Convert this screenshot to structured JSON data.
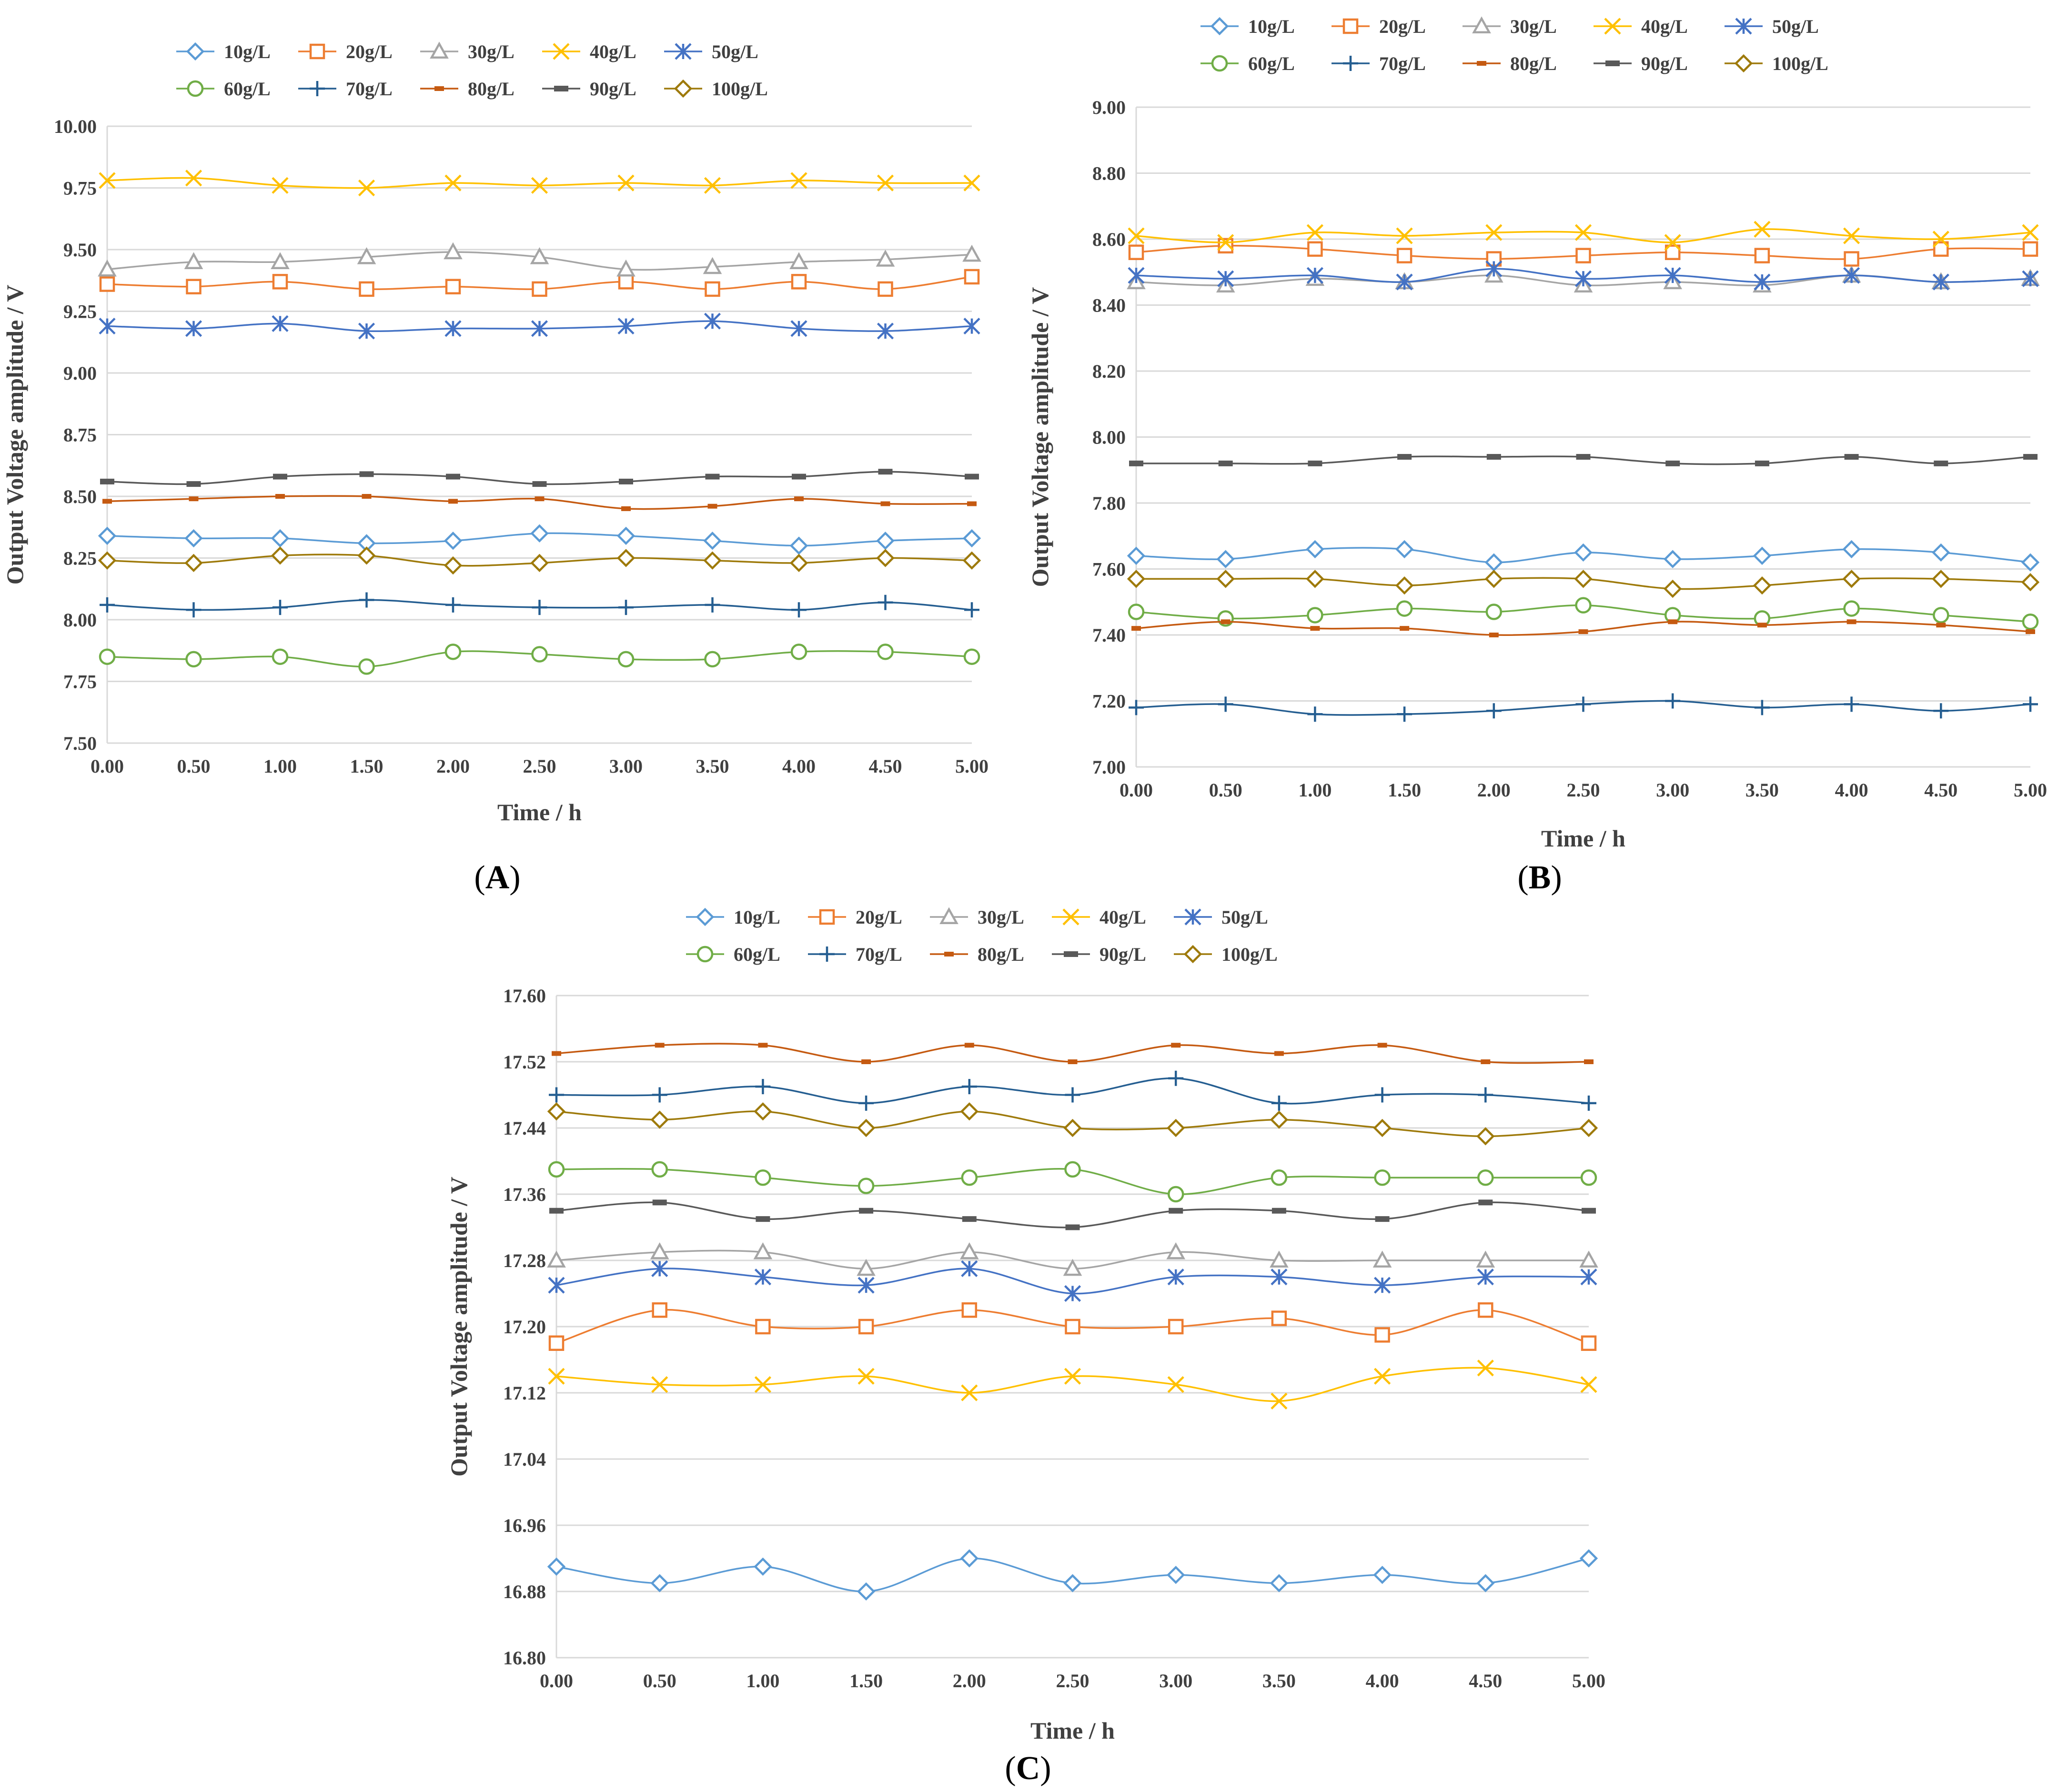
{
  "series_styles": [
    {
      "name": "10g/L",
      "color": "#5B9BD5",
      "marker": "diamond"
    },
    {
      "name": "20g/L",
      "color": "#ED7D31",
      "marker": "square"
    },
    {
      "name": "30g/L",
      "color": "#A5A5A5",
      "marker": "triangle"
    },
    {
      "name": "40g/L",
      "color": "#FFC000",
      "marker": "x"
    },
    {
      "name": "50g/L",
      "color": "#4472C4",
      "marker": "star"
    },
    {
      "name": "60g/L",
      "color": "#70AD47",
      "marker": "circle"
    },
    {
      "name": "70g/L",
      "color": "#255E91",
      "marker": "plus"
    },
    {
      "name": "80g/L",
      "color": "#C55A11",
      "marker": "dash"
    },
    {
      "name": "90g/L",
      "color": "#595959",
      "marker": "dash-wide"
    },
    {
      "name": "100g/L",
      "color": "#9E7A0B",
      "marker": "diamond"
    }
  ],
  "chart_data": [
    {
      "panel": "A",
      "type": "line",
      "xlabel": "Time / h",
      "ylabel": "Output Voltage amplitude / V",
      "x": [
        0,
        0.5,
        1,
        1.5,
        2,
        2.5,
        3,
        3.5,
        4,
        4.5,
        5
      ],
      "x_tick_labels": [
        "0.00",
        "0.50",
        "1.00",
        "1.50",
        "2.00",
        "2.50",
        "3.00",
        "3.50",
        "4.00",
        "4.50",
        "5.00"
      ],
      "ylim": [
        7.5,
        10.0
      ],
      "y_tick_labels": [
        "7.50",
        "7.75",
        "8.00",
        "8.25",
        "8.50",
        "8.75",
        "9.00",
        "9.25",
        "9.50",
        "9.75",
        "10.00"
      ],
      "grid": true,
      "legend": "top",
      "series": [
        {
          "name": "10g/L",
          "values": [
            8.34,
            8.33,
            8.33,
            8.31,
            8.32,
            8.35,
            8.34,
            8.32,
            8.3,
            8.32,
            8.33
          ]
        },
        {
          "name": "20g/L",
          "values": [
            9.36,
            9.35,
            9.37,
            9.34,
            9.35,
            9.34,
            9.37,
            9.34,
            9.37,
            9.34,
            9.39
          ]
        },
        {
          "name": "30g/L",
          "values": [
            9.42,
            9.45,
            9.45,
            9.47,
            9.49,
            9.47,
            9.42,
            9.43,
            9.45,
            9.46,
            9.48
          ]
        },
        {
          "name": "40g/L",
          "values": [
            9.78,
            9.79,
            9.76,
            9.75,
            9.77,
            9.76,
            9.77,
            9.76,
            9.78,
            9.77,
            9.77
          ]
        },
        {
          "name": "50g/L",
          "values": [
            9.19,
            9.18,
            9.2,
            9.17,
            9.18,
            9.18,
            9.19,
            9.21,
            9.18,
            9.17,
            9.19
          ]
        },
        {
          "name": "60g/L",
          "values": [
            7.85,
            7.84,
            7.85,
            7.81,
            7.87,
            7.86,
            7.84,
            7.84,
            7.87,
            7.87,
            7.85
          ]
        },
        {
          "name": "70g/L",
          "values": [
            8.06,
            8.04,
            8.05,
            8.08,
            8.06,
            8.05,
            8.05,
            8.06,
            8.04,
            8.07,
            8.04
          ]
        },
        {
          "name": "80g/L",
          "values": [
            8.48,
            8.49,
            8.5,
            8.5,
            8.48,
            8.49,
            8.45,
            8.46,
            8.49,
            8.47,
            8.47
          ]
        },
        {
          "name": "90g/L",
          "values": [
            8.56,
            8.55,
            8.58,
            8.59,
            8.58,
            8.55,
            8.56,
            8.58,
            8.58,
            8.6,
            8.58
          ]
        },
        {
          "name": "100g/L",
          "values": [
            8.24,
            8.23,
            8.26,
            8.26,
            8.22,
            8.23,
            8.25,
            8.24,
            8.23,
            8.25,
            8.24
          ]
        }
      ]
    },
    {
      "panel": "B",
      "type": "line",
      "xlabel": "Time / h",
      "ylabel": "Output Voltage amplitude / V",
      "x": [
        0,
        0.5,
        1,
        1.5,
        2,
        2.5,
        3,
        3.5,
        4,
        4.5,
        5
      ],
      "x_tick_labels": [
        "0.00",
        "0.50",
        "1.00",
        "1.50",
        "2.00",
        "2.50",
        "3.00",
        "3.50",
        "4.00",
        "4.50",
        "5.00"
      ],
      "ylim": [
        7.0,
        9.0
      ],
      "y_tick_labels": [
        "7.00",
        "7.20",
        "7.40",
        "7.60",
        "7.80",
        "8.00",
        "8.20",
        "8.40",
        "8.60",
        "8.80",
        "9.00"
      ],
      "grid": true,
      "legend": "top",
      "series": [
        {
          "name": "10g/L",
          "values": [
            7.64,
            7.63,
            7.66,
            7.66,
            7.62,
            7.65,
            7.63,
            7.64,
            7.66,
            7.65,
            7.62
          ]
        },
        {
          "name": "20g/L",
          "values": [
            8.56,
            8.58,
            8.57,
            8.55,
            8.54,
            8.55,
            8.56,
            8.55,
            8.54,
            8.57,
            8.57
          ]
        },
        {
          "name": "30g/L",
          "values": [
            8.47,
            8.46,
            8.48,
            8.47,
            8.49,
            8.46,
            8.47,
            8.46,
            8.49,
            8.47,
            8.48
          ]
        },
        {
          "name": "40g/L",
          "values": [
            8.61,
            8.59,
            8.62,
            8.61,
            8.62,
            8.62,
            8.59,
            8.63,
            8.61,
            8.6,
            8.62
          ]
        },
        {
          "name": "50g/L",
          "values": [
            8.49,
            8.48,
            8.49,
            8.47,
            8.51,
            8.48,
            8.49,
            8.47,
            8.49,
            8.47,
            8.48
          ]
        },
        {
          "name": "60g/L",
          "values": [
            7.47,
            7.45,
            7.46,
            7.48,
            7.47,
            7.49,
            7.46,
            7.45,
            7.48,
            7.46,
            7.44
          ]
        },
        {
          "name": "70g/L",
          "values": [
            7.18,
            7.19,
            7.16,
            7.16,
            7.17,
            7.19,
            7.2,
            7.18,
            7.19,
            7.17,
            7.19
          ]
        },
        {
          "name": "80g/L",
          "values": [
            7.42,
            7.44,
            7.42,
            7.42,
            7.4,
            7.41,
            7.44,
            7.43,
            7.44,
            7.43,
            7.41
          ]
        },
        {
          "name": "90g/L",
          "values": [
            7.92,
            7.92,
            7.92,
            7.94,
            7.94,
            7.94,
            7.92,
            7.92,
            7.94,
            7.92,
            7.94
          ]
        },
        {
          "name": "100g/L",
          "values": [
            7.57,
            7.57,
            7.57,
            7.55,
            7.57,
            7.57,
            7.54,
            7.55,
            7.57,
            7.57,
            7.56
          ]
        }
      ]
    },
    {
      "panel": "C",
      "type": "line",
      "xlabel": "Time / h",
      "ylabel": "Output Voltage amplitude / V",
      "x": [
        0,
        0.5,
        1,
        1.5,
        2,
        2.5,
        3,
        3.5,
        4,
        4.5,
        5
      ],
      "x_tick_labels": [
        "0.00",
        "0.50",
        "1.00",
        "1.50",
        "2.00",
        "2.50",
        "3.00",
        "3.50",
        "4.00",
        "4.50",
        "5.00"
      ],
      "ylim": [
        16.8,
        17.6
      ],
      "y_tick_labels": [
        "16.80",
        "16.88",
        "16.96",
        "17.04",
        "17.12",
        "17.20",
        "17.28",
        "17.36",
        "17.44",
        "17.52",
        "17.60"
      ],
      "grid": true,
      "legend": "top",
      "series": [
        {
          "name": "10g/L",
          "values": [
            16.91,
            16.89,
            16.91,
            16.88,
            16.92,
            16.89,
            16.9,
            16.89,
            16.9,
            16.89,
            16.92
          ]
        },
        {
          "name": "20g/L",
          "values": [
            17.18,
            17.22,
            17.2,
            17.2,
            17.22,
            17.2,
            17.2,
            17.21,
            17.19,
            17.22,
            17.18
          ]
        },
        {
          "name": "30g/L",
          "values": [
            17.28,
            17.29,
            17.29,
            17.27,
            17.29,
            17.27,
            17.29,
            17.28,
            17.28,
            17.28,
            17.28
          ]
        },
        {
          "name": "40g/L",
          "values": [
            17.14,
            17.13,
            17.13,
            17.14,
            17.12,
            17.14,
            17.13,
            17.11,
            17.14,
            17.15,
            17.13
          ]
        },
        {
          "name": "50g/L",
          "values": [
            17.25,
            17.27,
            17.26,
            17.25,
            17.27,
            17.24,
            17.26,
            17.26,
            17.25,
            17.26,
            17.26
          ]
        },
        {
          "name": "60g/L",
          "values": [
            17.39,
            17.39,
            17.38,
            17.37,
            17.38,
            17.39,
            17.36,
            17.38,
            17.38,
            17.38,
            17.38
          ]
        },
        {
          "name": "70g/L",
          "values": [
            17.48,
            17.48,
            17.49,
            17.47,
            17.49,
            17.48,
            17.5,
            17.47,
            17.48,
            17.48,
            17.47
          ]
        },
        {
          "name": "80g/L",
          "values": [
            17.53,
            17.54,
            17.54,
            17.52,
            17.54,
            17.52,
            17.54,
            17.53,
            17.54,
            17.52,
            17.52
          ]
        },
        {
          "name": "90g/L",
          "values": [
            17.34,
            17.35,
            17.33,
            17.34,
            17.33,
            17.32,
            17.34,
            17.34,
            17.33,
            17.35,
            17.34
          ]
        },
        {
          "name": "100g/L",
          "values": [
            17.46,
            17.45,
            17.46,
            17.44,
            17.46,
            17.44,
            17.44,
            17.45,
            17.44,
            17.43,
            17.44
          ]
        }
      ]
    }
  ]
}
